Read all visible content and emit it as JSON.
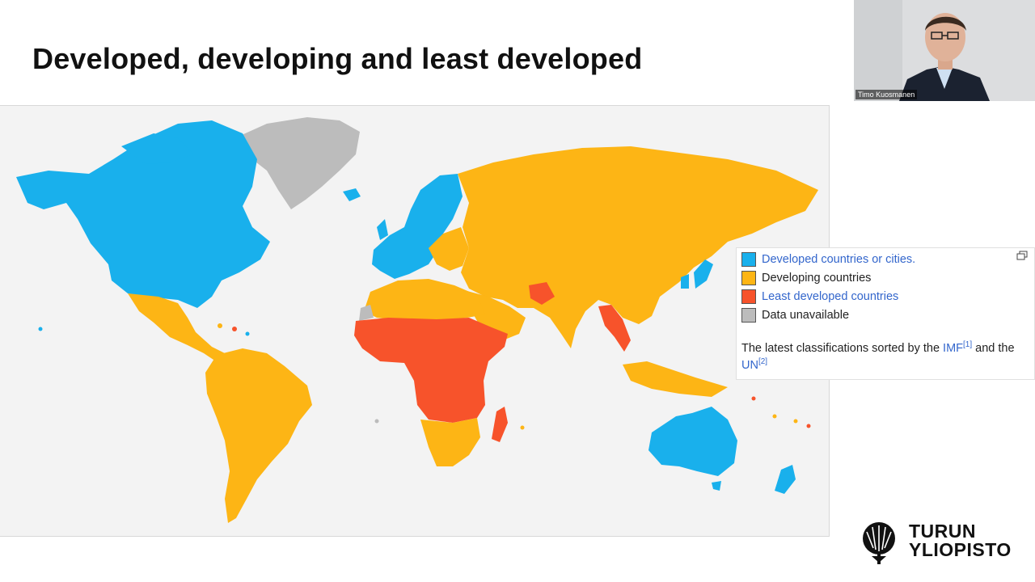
{
  "slide": {
    "title": "Developed, developing and least developed"
  },
  "legend": {
    "items": [
      {
        "label": "Developed countries or cities.",
        "color": "#19b0ec",
        "linked": true
      },
      {
        "label": "Developing countries",
        "color": "#fdb515",
        "linked": false
      },
      {
        "label": "Least developed countries",
        "color": "#f7532b",
        "linked": true
      },
      {
        "label": "Data unavailable",
        "color": "#bcbcbc",
        "linked": false
      }
    ],
    "caption": {
      "prefix": "The latest classifications sorted by the ",
      "imf_link": "IMF",
      "imf_ref": "[1]",
      "middle": " and the ",
      "un_link": "UN",
      "un_ref": "[2]"
    },
    "expand_icon": "expand-icon"
  },
  "video": {
    "participant_name": "Timo Kuosmanen"
  },
  "logo": {
    "line1": "TURUN",
    "line2": "YLIOPISTO"
  },
  "colors": {
    "developed": "#19b0ec",
    "developing": "#fdb515",
    "least_developed": "#f7532b",
    "unavailable": "#bcbcbc",
    "link": "#3366cc"
  }
}
